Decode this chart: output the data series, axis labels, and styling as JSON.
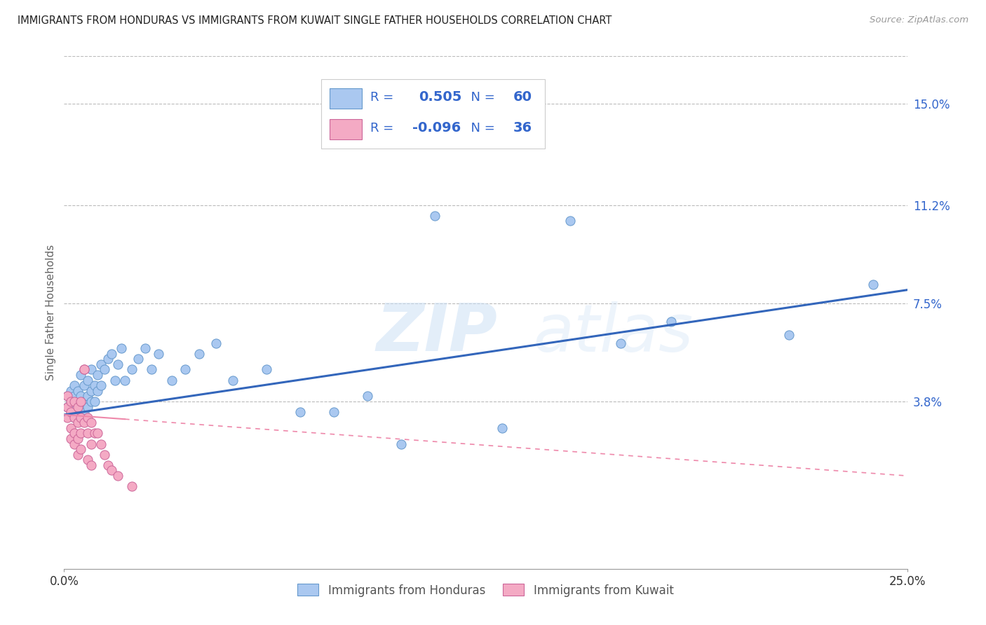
{
  "title": "IMMIGRANTS FROM HONDURAS VS IMMIGRANTS FROM KUWAIT SINGLE FATHER HOUSEHOLDS CORRELATION CHART",
  "source": "Source: ZipAtlas.com",
  "ylabel": "Single Father Households",
  "ytick_labels": [
    "15.0%",
    "11.2%",
    "7.5%",
    "3.8%"
  ],
  "ytick_values": [
    0.15,
    0.112,
    0.075,
    0.038
  ],
  "xlim": [
    0.0,
    0.25
  ],
  "ylim": [
    -0.025,
    0.168
  ],
  "color_honduras": "#aac8f0",
  "color_kuwait": "#f4aac4",
  "edge_color_honduras": "#6699cc",
  "edge_color_kuwait": "#cc6699",
  "line_color_honduras": "#3366bb",
  "line_color_kuwait": "#ee88aa",
  "background_color": "#ffffff",
  "grid_color": "#bbbbbb",
  "title_color": "#222222",
  "source_color": "#999999",
  "watermark_color": "#d8eaf8",
  "legend_box_color": "#eeeeee",
  "legend_text_color": "#3366cc",
  "honduras_x": [
    0.001,
    0.001,
    0.002,
    0.002,
    0.002,
    0.003,
    0.003,
    0.003,
    0.003,
    0.004,
    0.004,
    0.004,
    0.005,
    0.005,
    0.005,
    0.005,
    0.006,
    0.006,
    0.006,
    0.007,
    0.007,
    0.007,
    0.008,
    0.008,
    0.008,
    0.009,
    0.009,
    0.01,
    0.01,
    0.011,
    0.011,
    0.012,
    0.013,
    0.014,
    0.015,
    0.016,
    0.017,
    0.018,
    0.02,
    0.022,
    0.024,
    0.026,
    0.028,
    0.032,
    0.036,
    0.04,
    0.045,
    0.05,
    0.06,
    0.07,
    0.08,
    0.09,
    0.1,
    0.11,
    0.13,
    0.15,
    0.165,
    0.18,
    0.215,
    0.24
  ],
  "honduras_y": [
    0.036,
    0.04,
    0.034,
    0.038,
    0.042,
    0.032,
    0.036,
    0.04,
    0.044,
    0.034,
    0.038,
    0.042,
    0.032,
    0.036,
    0.04,
    0.048,
    0.034,
    0.038,
    0.044,
    0.036,
    0.04,
    0.046,
    0.038,
    0.042,
    0.05,
    0.038,
    0.044,
    0.042,
    0.048,
    0.044,
    0.052,
    0.05,
    0.054,
    0.056,
    0.046,
    0.052,
    0.058,
    0.046,
    0.05,
    0.054,
    0.058,
    0.05,
    0.056,
    0.046,
    0.05,
    0.056,
    0.06,
    0.046,
    0.05,
    0.034,
    0.034,
    0.04,
    0.022,
    0.108,
    0.028,
    0.106,
    0.06,
    0.068,
    0.063,
    0.082
  ],
  "kuwait_x": [
    0.001,
    0.001,
    0.001,
    0.002,
    0.002,
    0.002,
    0.002,
    0.003,
    0.003,
    0.003,
    0.003,
    0.004,
    0.004,
    0.004,
    0.004,
    0.005,
    0.005,
    0.005,
    0.005,
    0.006,
    0.006,
    0.006,
    0.007,
    0.007,
    0.007,
    0.008,
    0.008,
    0.008,
    0.009,
    0.01,
    0.011,
    0.012,
    0.013,
    0.014,
    0.016,
    0.02
  ],
  "kuwait_y": [
    0.04,
    0.036,
    0.032,
    0.038,
    0.034,
    0.028,
    0.024,
    0.038,
    0.032,
    0.026,
    0.022,
    0.036,
    0.03,
    0.024,
    0.018,
    0.038,
    0.032,
    0.026,
    0.02,
    0.05,
    0.05,
    0.03,
    0.032,
    0.026,
    0.016,
    0.03,
    0.022,
    0.014,
    0.026,
    0.026,
    0.022,
    0.018,
    0.014,
    0.012,
    0.01,
    0.006
  ],
  "line_h_x0": 0.0,
  "line_h_y0": 0.033,
  "line_h_x1": 0.25,
  "line_h_y1": 0.08,
  "line_k_x0": 0.0,
  "line_k_y0": 0.033,
  "line_k_x1": 0.25,
  "line_k_y1": 0.01
}
